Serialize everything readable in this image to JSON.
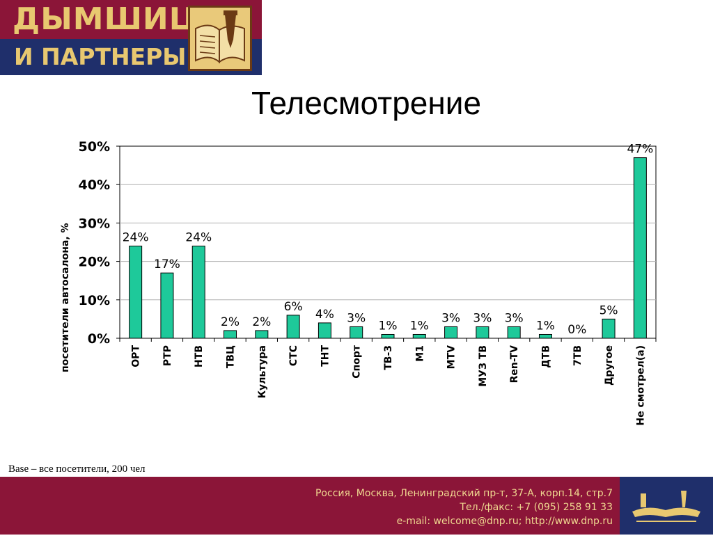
{
  "logo": {
    "line1": "ДЫМШИЦ",
    "line2": "И ПАРТНЕРЫ"
  },
  "title": "Телесмотрение",
  "base_note": "Base – все посетители, 200 чел",
  "footer": {
    "address": "Россия, Москва, Ленинградский пр-т, 37-А, корп.14, стр.7",
    "phone": "Тел./факс: +7 (095) 258 91 33",
    "contacts": "e-mail: welcome@dnp.ru; http://www.dnp.ru"
  },
  "colors": {
    "bar": "#1ec99a",
    "bar_border": "#000000",
    "logo_red": "#8b1538",
    "logo_blue": "#1f2f6b",
    "logo_gold": "#e8c870"
  },
  "chart_data": {
    "type": "bar",
    "title": "Телесмотрение",
    "ylabel": "посетители автосалона, %",
    "xlabel": "",
    "ylim": [
      0,
      50
    ],
    "yticks": [
      "0%",
      "10%",
      "20%",
      "30%",
      "40%",
      "50%"
    ],
    "grid": true,
    "categories": [
      "ОРТ",
      "РТР",
      "НТВ",
      "ТВЦ",
      "Культура",
      "СТС",
      "ТНТ",
      "Спорт",
      "ТВ-3",
      "М1",
      "MTV",
      "МУЗ ТВ",
      "Ren-TV",
      "ДТВ",
      "7ТВ",
      "Другое",
      "Не смотрел(а)"
    ],
    "values": [
      24,
      17,
      24,
      2,
      2,
      6,
      4,
      3,
      1,
      1,
      3,
      3,
      3,
      1,
      0,
      5,
      47
    ],
    "data_labels": [
      "24%",
      "17%",
      "24%",
      "2%",
      "2%",
      "6%",
      "4%",
      "3%",
      "1%",
      "1%",
      "3%",
      "3%",
      "3%",
      "1%",
      "0%",
      "5%",
      "47%"
    ]
  }
}
